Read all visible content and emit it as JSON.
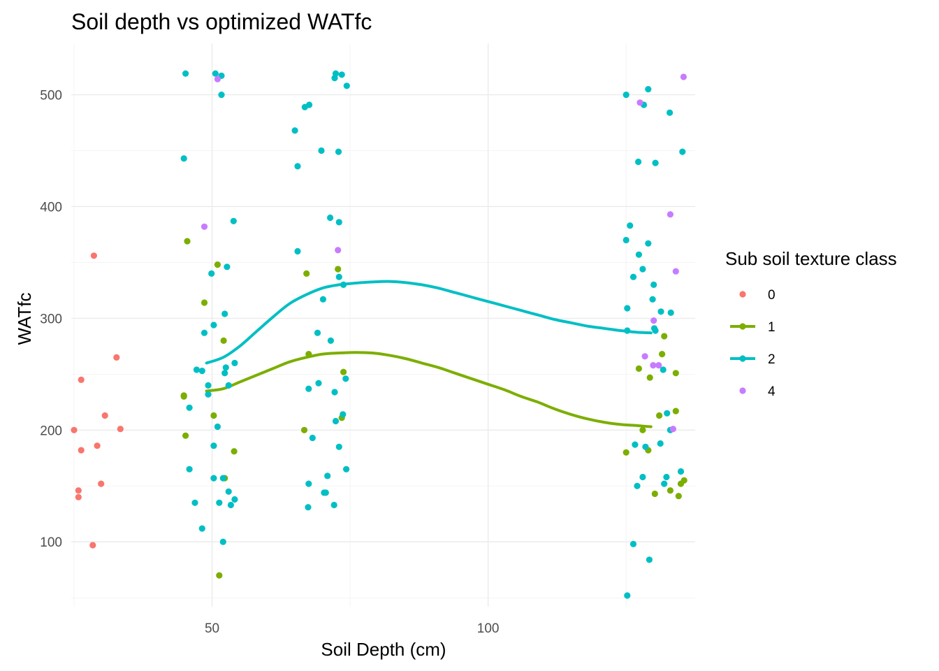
{
  "chart_data": {
    "type": "scatter",
    "title": "Soil depth vs optimized WATfc",
    "xlabel": "Soil Depth (cm)",
    "ylabel": "WATfc",
    "xlim": [
      24.5,
      137.5
    ],
    "ylim": [
      42,
      546
    ],
    "x_ticks": [
      50,
      100
    ],
    "x_tick_labels": [
      "50",
      "100"
    ],
    "x_minor_ticks": [
      25,
      75,
      125
    ],
    "y_ticks": [
      100,
      200,
      300,
      400,
      500
    ],
    "y_tick_labels": [
      "100",
      "200",
      "300",
      "400",
      "500"
    ],
    "y_minor_ticks": [
      50,
      150,
      250,
      350,
      450
    ],
    "grid": true,
    "legend": {
      "title": "Sub soil texture class",
      "position": "right",
      "entries": [
        {
          "label": "0",
          "color": "#F8766D",
          "line": false
        },
        {
          "label": "1",
          "color": "#7CAE00",
          "line": true
        },
        {
          "label": "2",
          "color": "#00BFC4",
          "line": true
        },
        {
          "label": "4",
          "color": "#C77CFF",
          "line": false
        }
      ]
    },
    "series": [
      {
        "name": "0",
        "color": "#F8766D",
        "points": [
          [
            25.0,
            200
          ],
          [
            25.8,
            146
          ],
          [
            25.8,
            140
          ],
          [
            26.3,
            245
          ],
          [
            26.3,
            182
          ],
          [
            28.6,
            356
          ],
          [
            28.4,
            97
          ],
          [
            29.2,
            186
          ],
          [
            29.9,
            152
          ],
          [
            30.6,
            213
          ],
          [
            32.7,
            265
          ],
          [
            33.4,
            201
          ]
        ]
      },
      {
        "name": "1",
        "color": "#7CAE00",
        "points": [
          [
            44.9,
            231
          ],
          [
            44.9,
            230
          ],
          [
            45.2,
            195
          ],
          [
            45.5,
            369
          ],
          [
            48.6,
            314
          ],
          [
            50.3,
            213
          ],
          [
            51.0,
            348
          ],
          [
            51.3,
            70
          ],
          [
            52.1,
            280
          ],
          [
            52.3,
            157
          ],
          [
            54.0,
            181
          ],
          [
            66.7,
            200
          ],
          [
            67.1,
            340
          ],
          [
            67.5,
            268
          ],
          [
            72.8,
            344
          ],
          [
            73.5,
            211
          ],
          [
            73.8,
            252
          ],
          [
            125.0,
            180
          ],
          [
            127.3,
            255
          ],
          [
            128.0,
            200
          ],
          [
            129.0,
            182
          ],
          [
            129.3,
            247
          ],
          [
            130.2,
            143
          ],
          [
            131.0,
            213
          ],
          [
            131.5,
            268
          ],
          [
            131.9,
            284
          ],
          [
            133.0,
            146
          ],
          [
            134.0,
            251
          ],
          [
            134.0,
            217
          ],
          [
            134.5,
            141
          ],
          [
            134.9,
            152
          ],
          [
            135.5,
            155
          ]
        ]
      },
      {
        "name": "2",
        "color": "#00BFC4",
        "points": [
          [
            45.2,
            519
          ],
          [
            44.9,
            443
          ],
          [
            45.9,
            220
          ],
          [
            45.9,
            165
          ],
          [
            46.9,
            135
          ],
          [
            47.2,
            254
          ],
          [
            48.2,
            112
          ],
          [
            48.2,
            253
          ],
          [
            48.6,
            287
          ],
          [
            49.3,
            240
          ],
          [
            49.3,
            232
          ],
          [
            49.9,
            340
          ],
          [
            50.3,
            294
          ],
          [
            50.3,
            157
          ],
          [
            50.3,
            186
          ],
          [
            50.6,
            519
          ],
          [
            51.0,
            203
          ],
          [
            51.3,
            135
          ],
          [
            51.7,
            500
          ],
          [
            51.7,
            517
          ],
          [
            52.0,
            157
          ],
          [
            52.0,
            100
          ],
          [
            52.3,
            304
          ],
          [
            52.3,
            251
          ],
          [
            52.5,
            256
          ],
          [
            52.7,
            346
          ],
          [
            53.0,
            240
          ],
          [
            53.0,
            145
          ],
          [
            53.4,
            133
          ],
          [
            53.9,
            387
          ],
          [
            54.1,
            138
          ],
          [
            54.1,
            260
          ],
          [
            65.0,
            468
          ],
          [
            65.5,
            436
          ],
          [
            65.5,
            360
          ],
          [
            66.8,
            489
          ],
          [
            67.6,
            491
          ],
          [
            67.5,
            237
          ],
          [
            67.5,
            152
          ],
          [
            67.4,
            131
          ],
          [
            68.2,
            193
          ],
          [
            69.1,
            287
          ],
          [
            69.3,
            242
          ],
          [
            69.8,
            450
          ],
          [
            70.1,
            317
          ],
          [
            70.3,
            144
          ],
          [
            70.6,
            144
          ],
          [
            70.9,
            159
          ],
          [
            71.4,
            390
          ],
          [
            71.5,
            280
          ],
          [
            72.2,
            515
          ],
          [
            72.4,
            519
          ],
          [
            72.2,
            234
          ],
          [
            72.1,
            133
          ],
          [
            72.4,
            208
          ],
          [
            72.9,
            449
          ],
          [
            73.0,
            386
          ],
          [
            73.0,
            337
          ],
          [
            73.0,
            185
          ],
          [
            73.5,
            518
          ],
          [
            73.7,
            214
          ],
          [
            73.8,
            330
          ],
          [
            74.2,
            246
          ],
          [
            74.3,
            165
          ],
          [
            74.4,
            508
          ],
          [
            125.0,
            500
          ],
          [
            125.0,
            370
          ],
          [
            125.2,
            309
          ],
          [
            125.2,
            289
          ],
          [
            125.2,
            52
          ],
          [
            125.7,
            383
          ],
          [
            126.3,
            337
          ],
          [
            126.3,
            98
          ],
          [
            126.6,
            187
          ],
          [
            127.0,
            150
          ],
          [
            127.2,
            440
          ],
          [
            127.3,
            357
          ],
          [
            128.0,
            344
          ],
          [
            128.0,
            158
          ],
          [
            128.2,
            491
          ],
          [
            128.5,
            185
          ],
          [
            129.0,
            505
          ],
          [
            129.0,
            367
          ],
          [
            129.2,
            84
          ],
          [
            129.8,
            317
          ],
          [
            130.0,
            330
          ],
          [
            130.1,
            291
          ],
          [
            130.3,
            289
          ],
          [
            130.3,
            439
          ],
          [
            131.2,
            188
          ],
          [
            131.3,
            306
          ],
          [
            131.7,
            254
          ],
          [
            131.9,
            152
          ],
          [
            132.4,
            215
          ],
          [
            132.3,
            158
          ],
          [
            132.9,
            484
          ],
          [
            133.1,
            305
          ],
          [
            133.0,
            200
          ],
          [
            134.9,
            163
          ],
          [
            135.2,
            449
          ]
        ]
      },
      {
        "name": "4",
        "color": "#C77CFF",
        "points": [
          [
            48.6,
            382
          ],
          [
            51.0,
            514
          ],
          [
            72.8,
            361
          ],
          [
            127.5,
            493
          ],
          [
            128.4,
            266
          ],
          [
            129.9,
            258
          ],
          [
            130.0,
            298
          ],
          [
            130.9,
            258
          ],
          [
            133.0,
            393
          ],
          [
            133.5,
            201
          ],
          [
            134.0,
            342
          ],
          [
            135.4,
            516
          ]
        ]
      }
    ],
    "smooth_lines": [
      {
        "name": "1",
        "color": "#7CAE00",
        "points": [
          [
            49,
            235
          ],
          [
            52,
            237
          ],
          [
            55,
            243
          ],
          [
            58,
            249
          ],
          [
            61,
            255
          ],
          [
            64,
            261
          ],
          [
            67,
            265
          ],
          [
            70,
            268
          ],
          [
            73,
            269
          ],
          [
            76,
            269.5
          ],
          [
            79,
            269
          ],
          [
            82,
            267
          ],
          [
            85,
            264
          ],
          [
            88,
            260
          ],
          [
            91,
            256
          ],
          [
            94,
            251
          ],
          [
            97,
            246
          ],
          [
            100,
            241
          ],
          [
            103,
            236
          ],
          [
            106,
            230
          ],
          [
            109,
            225
          ],
          [
            112,
            219
          ],
          [
            115,
            214
          ],
          [
            118,
            210
          ],
          [
            121,
            207
          ],
          [
            124,
            205
          ],
          [
            127,
            204
          ],
          [
            129.5,
            203
          ]
        ]
      },
      {
        "name": "2",
        "color": "#00BFC4",
        "points": [
          [
            49,
            260
          ],
          [
            52,
            265
          ],
          [
            55,
            275
          ],
          [
            58,
            288
          ],
          [
            61,
            301
          ],
          [
            64,
            313
          ],
          [
            67,
            321
          ],
          [
            70,
            327
          ],
          [
            73,
            330
          ],
          [
            76,
            331.5
          ],
          [
            79,
            332.5
          ],
          [
            82,
            333
          ],
          [
            85,
            332
          ],
          [
            88,
            330
          ],
          [
            91,
            327
          ],
          [
            94,
            323
          ],
          [
            97,
            319
          ],
          [
            100,
            315
          ],
          [
            103,
            311
          ],
          [
            106,
            307
          ],
          [
            109,
            303
          ],
          [
            112,
            299
          ],
          [
            115,
            296
          ],
          [
            118,
            293
          ],
          [
            121,
            291
          ],
          [
            124,
            289
          ],
          [
            127,
            287.5
          ],
          [
            129.5,
            287
          ]
        ]
      }
    ]
  }
}
